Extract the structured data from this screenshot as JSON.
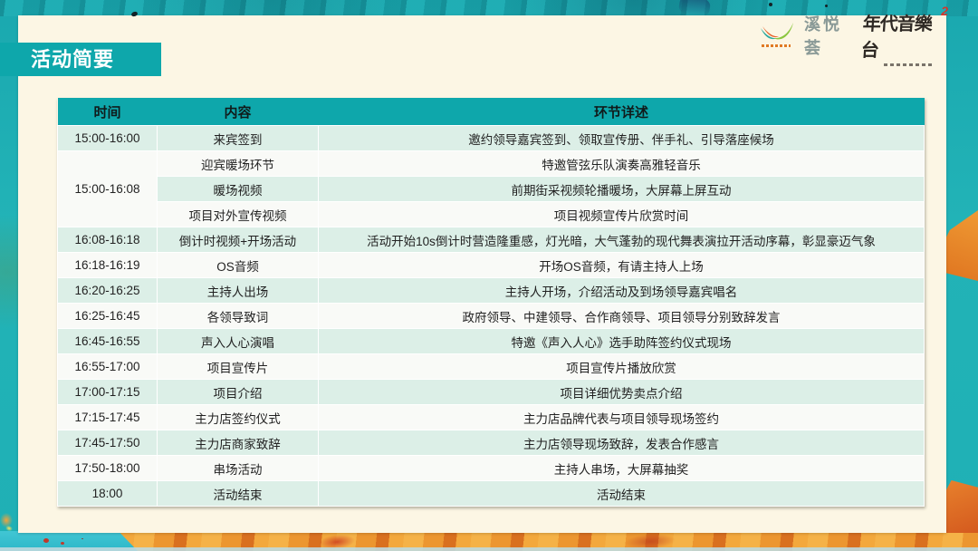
{
  "slide": {
    "title": "活动简要",
    "logos": {
      "brand_swoosh_icon": "swoosh-logo",
      "brand_name": "溪悦荟",
      "calligraphy_mark": "年代音樂台",
      "calligraphy_superscript": "2"
    }
  },
  "table": {
    "headers": {
      "time": "时间",
      "content": "内容",
      "detail": "环节详述"
    },
    "rows": [
      {
        "time": "15:00-16:00",
        "content": "来宾签到",
        "detail": "邀约领导嘉宾签到、领取宣传册、伴手礼、引导落座候场"
      },
      {
        "time": "15:00-16:08",
        "time_rowspan": 3,
        "content": "迎宾暖场环节",
        "detail": "特邀管弦乐队演奏高雅轻音乐"
      },
      {
        "content": "暖场视频",
        "detail": "前期街采视频轮播暖场，大屏幕上屏互动"
      },
      {
        "content": "项目对外宣传视频",
        "detail": "项目视频宣传片欣赏时间"
      },
      {
        "time": "16:08-16:18",
        "content": "倒计时视频+开场活动",
        "detail": "活动开始10s倒计时营造隆重感，灯光暗，大气蓬勃的现代舞表演拉开活动序幕，彰显豪迈气象"
      },
      {
        "time": "16:18-16:19",
        "content": "OS音频",
        "detail": "开场OS音频，有请主持人上场"
      },
      {
        "time": "16:20-16:25",
        "content": "主持人出场",
        "detail": "主持人开场，介绍活动及到场领导嘉宾唱名"
      },
      {
        "time": "16:25-16:45",
        "content": "各领导致词",
        "detail": "政府领导、中建领导、合作商领导、项目领导分别致辞发言"
      },
      {
        "time": "16:45-16:55",
        "content": "声入人心演唱",
        "detail": "特邀《声入人心》选手助阵签约仪式现场"
      },
      {
        "time": "16:55-17:00",
        "content": "项目宣传片",
        "detail": "项目宣传片播放欣赏"
      },
      {
        "time": "17:00-17:15",
        "content": "项目介绍",
        "detail": "项目详细优势卖点介绍"
      },
      {
        "time": "17:15-17:45",
        "content": "主力店签约仪式",
        "detail": "主力店品牌代表与项目领导现场签约"
      },
      {
        "time": "17:45-17:50",
        "content": "主力店商家致辞",
        "detail": "主力店领导现场致辞，发表合作感言"
      },
      {
        "time": "17:50-18:00",
        "content": "串场活动",
        "detail": "主持人串场，大屏幕抽奖"
      },
      {
        "time": "18:00",
        "content": "活动结束",
        "detail": "活动结束"
      }
    ]
  },
  "colors": {
    "accent": "#0ea7ab",
    "background_teal": "#1fb0b5",
    "card_cream": "#fcf6e4",
    "row_green": "#dcefe7",
    "row_white": "#f9faf7",
    "header_text": "#101b1b",
    "body_text": "#222222",
    "brand_gray": "#8a9a97",
    "calligraphy_black": "#2e2924",
    "seal_red": "#d4372c",
    "paint_orange": "#e8872a",
    "paint_cyan": "#3cc3d3"
  }
}
